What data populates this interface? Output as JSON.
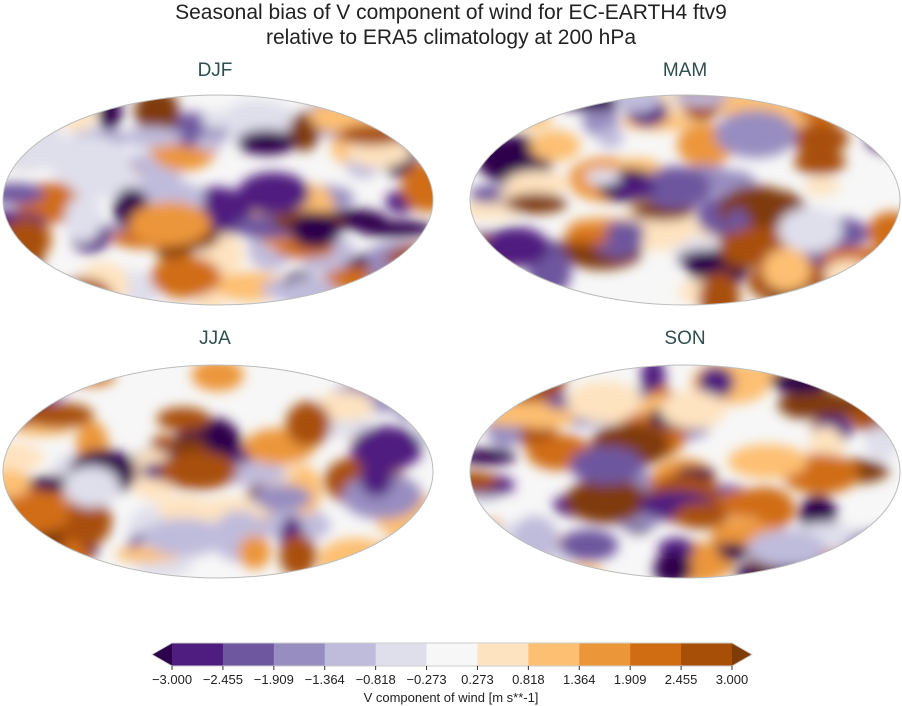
{
  "title_line1": "Seasonal bias of V component of wind for EC-EARTH4 ftv9",
  "title_line2": "relative to ERA5 climatology at 200 hPa",
  "panels": [
    {
      "label": "DJF"
    },
    {
      "label": "MAM"
    },
    {
      "label": "JJA"
    },
    {
      "label": "SON"
    }
  ],
  "colorbar": {
    "label": "V component of wind [m s**-1]",
    "ticks": [
      "−3.000",
      "−2.455",
      "−1.909",
      "−1.364",
      "−0.818",
      "−0.273",
      "0.273",
      "0.818",
      "1.364",
      "1.909",
      "2.455",
      "3.000"
    ],
    "levels": [
      -3.0,
      -2.455,
      -1.909,
      -1.364,
      -0.818,
      -0.273,
      0.273,
      0.818,
      1.364,
      1.909,
      2.455,
      3.0
    ],
    "colors": [
      "#4f1d7f",
      "#6e579f",
      "#978dc0",
      "#bfbbdb",
      "#dfdfec",
      "#f7f7f7",
      "#fee3c0",
      "#fdbf72",
      "#ec963a",
      "#d06d12",
      "#a84f07"
    ],
    "under_color": "#2d004b",
    "over_color": "#7f3b08",
    "extend": "both"
  },
  "projection": "Robinson"
}
